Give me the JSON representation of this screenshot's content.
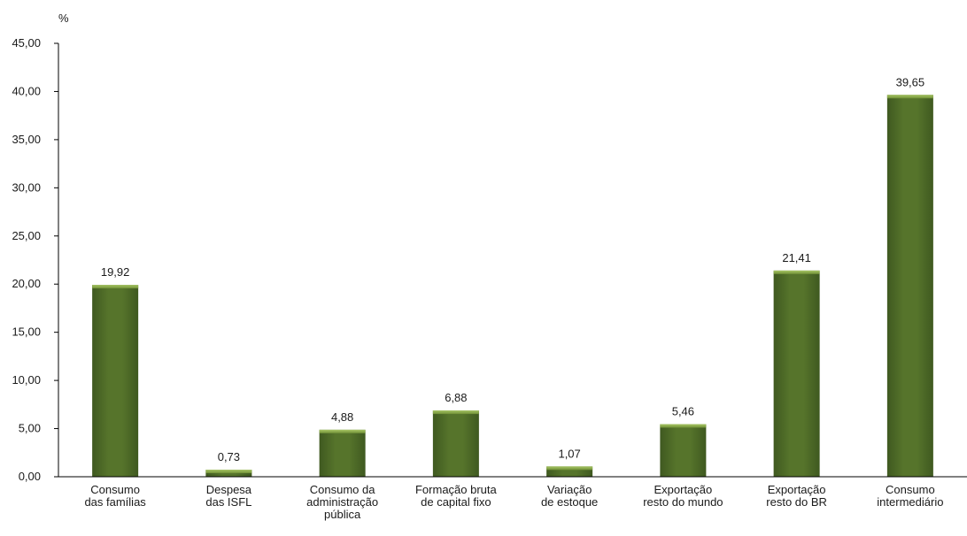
{
  "chart_data": {
    "type": "bar",
    "ylabel": "%",
    "ylim": [
      0,
      45
    ],
    "yticks": [
      "0,00",
      "5,00",
      "10,00",
      "15,00",
      "20,00",
      "25,00",
      "30,00",
      "35,00",
      "40,00",
      "45,00"
    ],
    "grid": false,
    "categories": [
      [
        "Consumo",
        "das famílias"
      ],
      [
        "Despesa",
        "das ISFL"
      ],
      [
        "Consumo da",
        "administração",
        "pública"
      ],
      [
        "Formação bruta",
        "de capital fixo"
      ],
      [
        "Variação",
        "de estoque"
      ],
      [
        "Exportação",
        "resto do mundo"
      ],
      [
        "Exportação",
        "resto do BR"
      ],
      [
        "Consumo",
        "intermediário"
      ]
    ],
    "values": [
      19.92,
      0.73,
      4.88,
      6.88,
      1.07,
      5.46,
      21.41,
      39.65
    ],
    "value_labels": [
      "19,92",
      "0,73",
      "4,88",
      "6,88",
      "1,07",
      "5,46",
      "21,41",
      "39,65"
    ],
    "colors": {
      "bar": "#4f6b27",
      "bar_dark": "#3e5620",
      "bar_top": "#8fb04e",
      "axis": "#000000"
    }
  }
}
